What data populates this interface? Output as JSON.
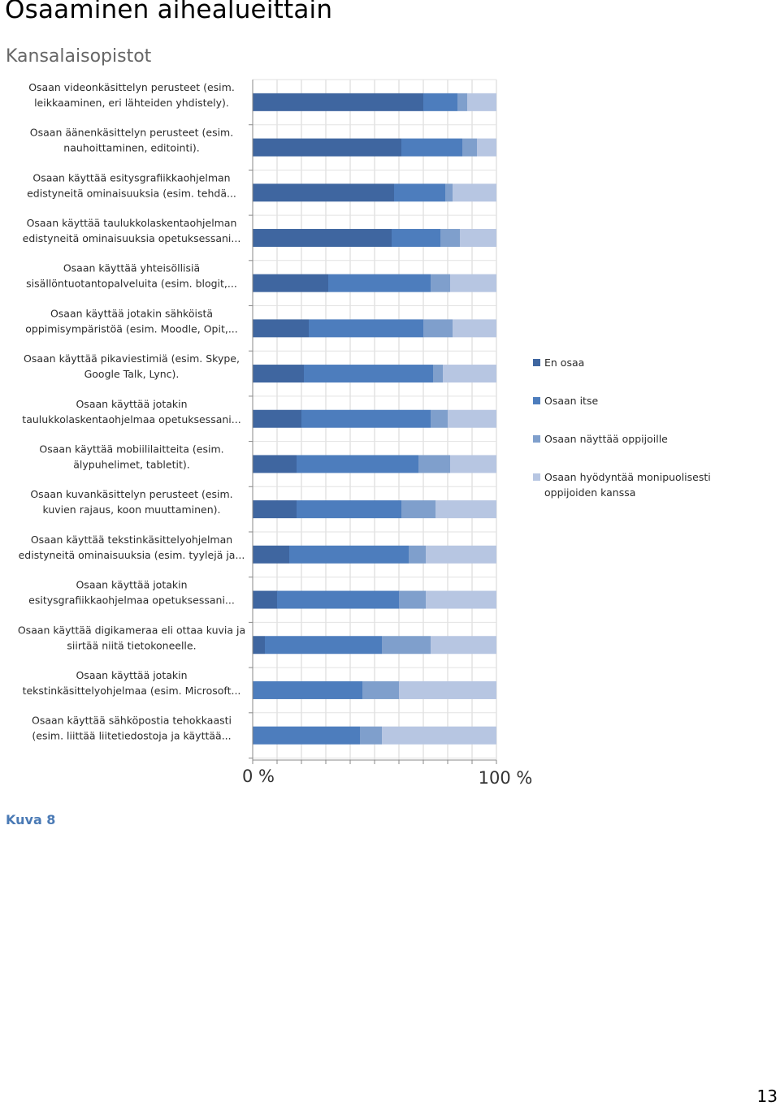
{
  "page": {
    "title": "Osaaminen aihealueittain",
    "subtitle": "Kansalaisopistot",
    "caption": "Kuva 8",
    "page_number": "13"
  },
  "chart_data": {
    "type": "bar",
    "orientation": "horizontal",
    "stacked": "percent",
    "categories": [
      [
        "Osaan videonkäsittelyn perusteet (esim.",
        "leikkaaminen, eri lähteiden yhdistely)."
      ],
      [
        "Osaan äänenkäsittelyn perusteet (esim.",
        "nauhoittaminen, editointi)."
      ],
      [
        "Osaan käyttää esitysgrafiikkaohjelman",
        "edistyneitä ominaisuuksia (esim. tehdä..."
      ],
      [
        "Osaan käyttää taulukkolaskentaohjelman",
        "edistyneitä ominaisuuksia opetuksessani..."
      ],
      [
        "Osaan käyttää yhteisöllisiä",
        "sisällöntuotantopalveluita (esim. blogit,..."
      ],
      [
        "Osaan käyttää jotakin sähköistä",
        "oppimisympäristöä (esim. Moodle, Opit,..."
      ],
      [
        "Osaan käyttää pikaviestimiä (esim. Skype,",
        "Google Talk, Lync)."
      ],
      [
        "Osaan käyttää jotakin",
        "taulukkolaskentaohjelmaa opetuksessani..."
      ],
      [
        "Osaan käyttää mobiililaitteita (esim.",
        "älypuhelimet, tabletit)."
      ],
      [
        "Osaan kuvankäsittelyn perusteet (esim.",
        "kuvien rajaus, koon muuttaminen)."
      ],
      [
        "Osaan käyttää tekstinkäsittelyohjelman",
        "edistyneitä ominaisuuksia (esim. tyylejä ja..."
      ],
      [
        "Osaan käyttää jotakin",
        "esitysgrafiikkaohjelmaa opetuksessani..."
      ],
      [
        "Osaan käyttää digikameraa eli ottaa kuvia ja",
        "siirtää niitä tietokoneelle."
      ],
      [
        "Osaan käyttää jotakin",
        "tekstinkäsittelyohjelmaa (esim. Microsoft..."
      ],
      [
        "Osaan käyttää sähköpostia tehokkaasti",
        "(esim. liittää liitetiedostoja ja käyttää..."
      ]
    ],
    "series": [
      {
        "name": "En osaa",
        "color": "#3f66a0",
        "values": [
          70,
          61,
          58,
          57,
          31,
          23,
          21,
          20,
          18,
          18,
          15,
          10,
          5,
          0,
          0
        ]
      },
      {
        "name": "Osaan itse",
        "color": "#4d7dbd",
        "values": [
          14,
          25,
          21,
          20,
          42,
          47,
          53,
          53,
          50,
          43,
          49,
          50,
          48,
          45,
          44
        ]
      },
      {
        "name": "Osaan näyttää oppijoille",
        "color": "#7f9fcc",
        "values": [
          4,
          6,
          3,
          8,
          8,
          12,
          4,
          7,
          13,
          14,
          7,
          11,
          20,
          15,
          9
        ]
      },
      {
        "name": "Osaan hyödyntää monipuolisesti oppijoiden kanssa",
        "color": "#b7c6e2",
        "values": [
          12,
          8,
          18,
          15,
          19,
          18,
          22,
          20,
          19,
          25,
          29,
          29,
          27,
          40,
          47
        ]
      }
    ],
    "xlim": [
      0,
      100
    ],
    "x_tick_labels": [
      "0 %",
      "100 %"
    ],
    "grid": true,
    "legend": "right"
  }
}
